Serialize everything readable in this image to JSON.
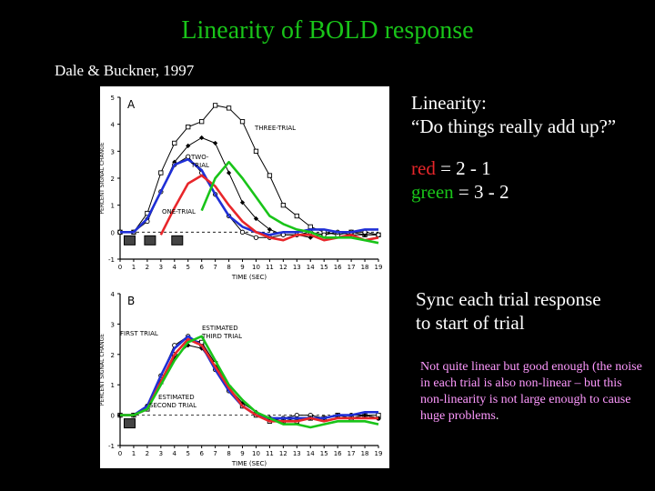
{
  "slide": {
    "title": "Linearity of BOLD response",
    "citation": "Dale & Buckner, 1997",
    "question_heading": "Linearity:",
    "question": "“Do things really add up?”",
    "eq_red_word": "red",
    "eq_red_rest": " = 2 - 1",
    "eq_green_word": "green",
    "eq_green_rest": " = 3 - 2",
    "sync_line1": "Sync each trial response",
    "sync_line2": "to start of trial",
    "note_text": "Not quite linear but good enough (the noise in each trial is also non-linear – but this non-linearity is not large enough to cause huge problems",
    "note_end": ".",
    "colors": {
      "title": "#19c419",
      "red": "#e8262a",
      "green": "#19c419",
      "note": "#ff99ff",
      "blue": "#1f2fd6"
    }
  },
  "figure": {
    "panelA": {
      "letter": "A",
      "ylabel": "PERCENT SIGNAL CHANGE",
      "xlabel": "TIME (SEC)",
      "yticks": [
        "5",
        "4",
        "3",
        "2",
        "1",
        "0",
        "-1"
      ],
      "xticks": [
        "0",
        "1",
        "2",
        "3",
        "4",
        "5",
        "6",
        "7",
        "8",
        "9",
        "10",
        "11",
        "12",
        "13",
        "14",
        "15",
        "16",
        "17",
        "18",
        "19"
      ],
      "label_three": "THREE-TRIAL",
      "label_two_1": "TWO-",
      "label_two_2": "TRIAL",
      "label_one": "ONE-TRIAL"
    },
    "panelB": {
      "letter": "B",
      "ylabel": "PERCENT SIGNAL CHANGE",
      "xlabel": "TIME (SEC)",
      "yticks": [
        "4",
        "3",
        "2",
        "1",
        "0",
        "-1"
      ],
      "xticks": [
        "0",
        "1",
        "2",
        "3",
        "4",
        "5",
        "6",
        "7",
        "8",
        "9",
        "10",
        "11",
        "12",
        "13",
        "14",
        "15",
        "16",
        "17",
        "18",
        "19"
      ],
      "label_first": "FIRST TRIAL",
      "label_third_1": "ESTIMATED",
      "label_third_2": "THIRD TRIAL",
      "label_second_1": "ESTIMATED",
      "label_second_2": "SECOND TRIAL"
    }
  },
  "chart_data": [
    {
      "type": "line",
      "panel": "A",
      "xlabel": "TIME (SEC)",
      "ylabel": "PERCENT SIGNAL CHANGE",
      "ylim": [
        -1,
        5
      ],
      "xlim": [
        0,
        19
      ],
      "x": [
        0,
        1,
        2,
        3,
        4,
        5,
        6,
        7,
        8,
        9,
        10,
        11,
        12,
        13,
        14,
        15,
        16,
        17,
        18,
        19
      ],
      "series": [
        {
          "name": "THREE-TRIAL",
          "color": "#000000",
          "marker": "square",
          "values": [
            0,
            0,
            0.7,
            2.2,
            3.3,
            3.9,
            4.1,
            4.7,
            4.6,
            4.1,
            3.0,
            2.1,
            1.0,
            0.6,
            0.2,
            0.0,
            -0.1,
            0.0,
            -0.1,
            -0.1
          ]
        },
        {
          "name": "TWO-TRIAL",
          "color": "#000000",
          "marker": "diamond",
          "values": [
            0,
            0,
            0.5,
            1.5,
            2.6,
            3.2,
            3.5,
            3.3,
            2.2,
            1.1,
            0.5,
            0.1,
            -0.1,
            -0.1,
            -0.2,
            -0.1,
            0.0,
            -0.1,
            -0.1,
            -0.1
          ]
        },
        {
          "name": "ONE-TRIAL",
          "color": "#000000",
          "marker": "circle",
          "values": [
            0,
            0,
            0.4,
            1.5,
            2.5,
            2.8,
            2.2,
            1.4,
            0.6,
            0.0,
            -0.2,
            -0.2,
            -0.1,
            -0.1,
            0.0,
            -0.1,
            0.0,
            0.0,
            0.0,
            -0.1
          ]
        },
        {
          "name": "",
          "color": "#1f2fd6",
          "values": [
            0,
            0,
            0.5,
            1.5,
            2.5,
            2.7,
            2.3,
            1.4,
            0.6,
            0.2,
            0.0,
            -0.1,
            0.0,
            0.0,
            0.1,
            0.1,
            0.0,
            0.0,
            0.1,
            0.1
          ]
        },
        {
          "name": "",
          "color": "#e8262a",
          "values": [
            null,
            null,
            null,
            -0.1,
            0.9,
            1.8,
            2.1,
            1.7,
            1.0,
            0.4,
            0.0,
            -0.2,
            -0.3,
            -0.1,
            -0.1,
            -0.3,
            -0.2,
            -0.1,
            -0.3,
            -0.2
          ]
        },
        {
          "name": "",
          "color": "#19c419",
          "values": [
            null,
            null,
            null,
            null,
            null,
            null,
            0.8,
            2.0,
            2.6,
            2.0,
            1.3,
            0.6,
            0.3,
            0.1,
            0.0,
            -0.2,
            -0.2,
            -0.2,
            -0.3,
            -0.4
          ]
        }
      ]
    },
    {
      "type": "line",
      "panel": "B",
      "xlabel": "TIME (SEC)",
      "ylabel": "PERCENT SIGNAL CHANGE",
      "ylim": [
        -1,
        4
      ],
      "xlim": [
        0,
        19
      ],
      "x": [
        0,
        1,
        2,
        3,
        4,
        5,
        6,
        7,
        8,
        9,
        10,
        11,
        12,
        13,
        14,
        15,
        16,
        17,
        18,
        19
      ],
      "series": [
        {
          "name": "FIRST TRIAL",
          "color": "#000000",
          "marker": "circle",
          "values": [
            0,
            0,
            0.3,
            1.3,
            2.3,
            2.6,
            2.3,
            1.5,
            0.8,
            0.3,
            0.0,
            -0.1,
            -0.1,
            0.0,
            0.0,
            -0.1,
            0.0,
            0.0,
            0.0,
            -0.1
          ]
        },
        {
          "name": "ESTIMATED THIRD TRIAL",
          "color": "#000000",
          "marker": "square",
          "values": [
            0,
            0,
            0.2,
            1.1,
            2.0,
            2.5,
            2.4,
            1.7,
            0.9,
            0.3,
            0.0,
            -0.2,
            -0.2,
            -0.2,
            -0.1,
            -0.1,
            0.0,
            -0.1,
            0.0,
            0.0
          ]
        },
        {
          "name": "ESTIMATED SECOND TRIAL",
          "color": "#000000",
          "marker": "diamond",
          "values": [
            0,
            0,
            0.3,
            1.1,
            1.9,
            2.3,
            2.2,
            1.6,
            0.9,
            0.4,
            0.1,
            -0.1,
            -0.2,
            -0.1,
            -0.1,
            -0.1,
            0.0,
            0.0,
            0.0,
            -0.1
          ]
        },
        {
          "name": "",
          "color": "#1f2fd6",
          "values": [
            0,
            0,
            0.3,
            1.3,
            2.2,
            2.6,
            2.3,
            1.5,
            0.8,
            0.3,
            0.0,
            -0.1,
            -0.1,
            -0.1,
            -0.1,
            -0.1,
            0.0,
            0.0,
            0.1,
            0.1
          ]
        },
        {
          "name": "",
          "color": "#e8262a",
          "values": [
            0,
            0,
            0.2,
            1.1,
            2.0,
            2.5,
            2.3,
            1.6,
            0.9,
            0.3,
            0.0,
            -0.2,
            -0.2,
            -0.2,
            -0.1,
            -0.2,
            -0.1,
            -0.1,
            -0.1,
            -0.1
          ]
        },
        {
          "name": "",
          "color": "#19c419",
          "values": [
            0,
            0,
            0.2,
            1.0,
            1.8,
            2.4,
            2.6,
            1.8,
            1.0,
            0.5,
            0.1,
            -0.1,
            -0.3,
            -0.3,
            -0.4,
            -0.3,
            -0.2,
            -0.2,
            -0.2,
            -0.3
          ]
        }
      ]
    }
  ]
}
